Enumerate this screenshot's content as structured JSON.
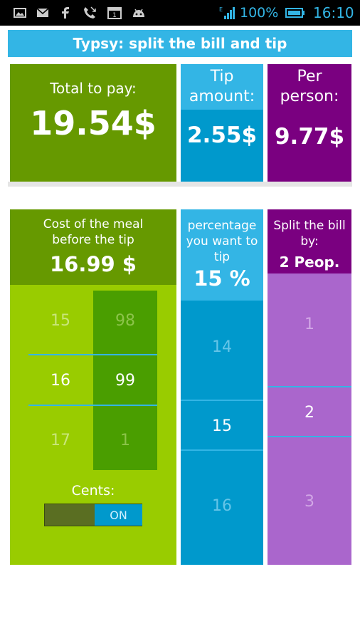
{
  "status_bar": {
    "battery_percent": "100%",
    "time": "16:10"
  },
  "app": {
    "title": "Typsy: split the bill and tip"
  },
  "summary": {
    "total_label": "Total to pay:",
    "total_value": "19.54$",
    "tip_label": "Tip amount:",
    "tip_value": "2.55$",
    "per_person_label": "Per person:",
    "per_person_value": "9.77$"
  },
  "meal": {
    "label": "Cost of the meal before the tip",
    "value": "16.99 $",
    "dollars_picker": [
      "15",
      "16",
      "17"
    ],
    "cents_picker": [
      "98",
      "99",
      "1"
    ],
    "cents_label": "Cents:",
    "cents_toggle_on": "ON"
  },
  "tip_percent": {
    "label": "percentage you want to tip",
    "value": "15 %",
    "picker": [
      "14",
      "15",
      "16"
    ]
  },
  "split": {
    "label": "Split the bill by:",
    "value": "2 Peop.",
    "picker": [
      "1",
      "2",
      "3"
    ]
  },
  "colors": {
    "status_blue": "#33b5e5",
    "green_dark": "#669900",
    "green_light": "#99cc00",
    "blue": "#0099cc",
    "purple_dark": "#7a0080",
    "purple_light": "#aa66cc"
  }
}
